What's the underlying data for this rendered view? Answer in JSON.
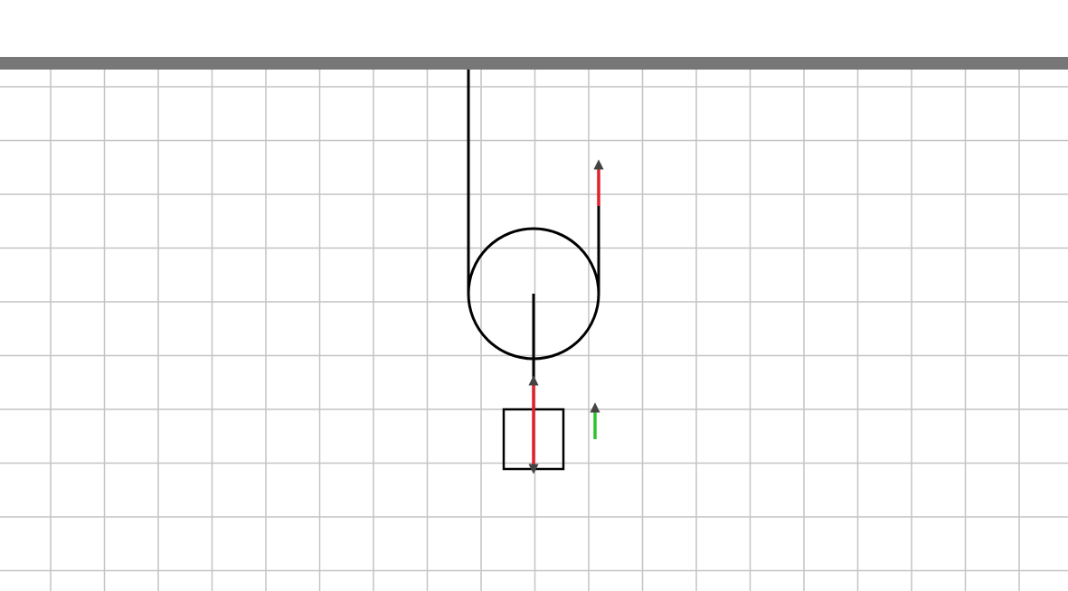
{
  "diagram": {
    "kind": "movable pulley with hanging block",
    "colors": {
      "background": "#ffffff",
      "grid": "#c4c4c4",
      "ceiling": "#777777",
      "rope": "#000000",
      "pulley_outline": "#000000",
      "block_outline": "#000000",
      "force_vector": "#e0202a",
      "velocity_vector": "#2ec42e",
      "arrowhead": "#444444"
    },
    "elements": {
      "ceiling": "ceiling-bar",
      "grid": "background-grid",
      "fixed_rope": "left-rope-segment",
      "pulled_rope": "right-rope-segment",
      "pulley": "movable-pulley",
      "axle_rod": "pulley-to-block-rod",
      "block": "hanging-block"
    },
    "vectors": [
      {
        "name": "applied-pull-force",
        "direction": "up",
        "color_key": "force_vector"
      },
      {
        "name": "tension-on-block",
        "direction": "up",
        "color_key": "force_vector"
      },
      {
        "name": "weight-of-block",
        "direction": "down",
        "color_key": "force_vector"
      },
      {
        "name": "velocity-of-block",
        "direction": "up",
        "color_key": "velocity_vector"
      }
    ]
  }
}
